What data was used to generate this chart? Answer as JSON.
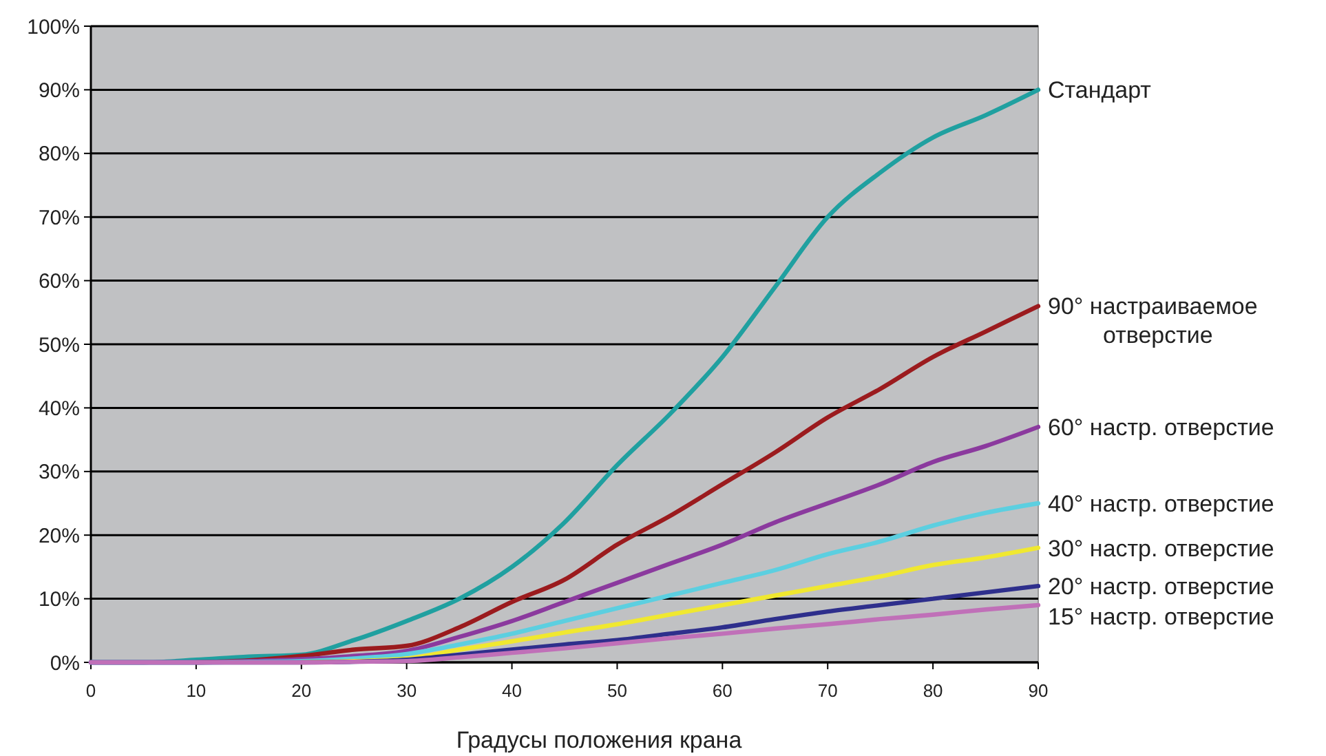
{
  "chart_data": {
    "type": "line",
    "xlabel": "Градусы положения крана",
    "x": [
      0,
      5,
      10,
      15,
      20,
      25,
      30,
      35,
      40,
      45,
      50,
      55,
      60,
      65,
      70,
      75,
      80,
      85,
      90
    ],
    "xlim": [
      0,
      90
    ],
    "xticks": [
      0,
      10,
      20,
      30,
      40,
      50,
      60,
      70,
      80,
      90
    ],
    "ylim": [
      0,
      100
    ],
    "yticks": [
      {
        "value": 0,
        "label": "0%"
      },
      {
        "value": 10,
        "label": "10%"
      },
      {
        "value": 20,
        "label": "20%"
      },
      {
        "value": 30,
        "label": "30%"
      },
      {
        "value": 40,
        "label": "40%"
      },
      {
        "value": 50,
        "label": "50%"
      },
      {
        "value": 60,
        "label": "60%"
      },
      {
        "value": 70,
        "label": "70%"
      },
      {
        "value": 80,
        "label": "80%"
      },
      {
        "value": 90,
        "label": "90%"
      },
      {
        "value": 100,
        "label": "100%"
      }
    ],
    "grid": "y",
    "legend": false,
    "line_style": "solid",
    "marker": "none",
    "series": [
      {
        "name": "Стандарт",
        "color": "#20a0a0",
        "values": [
          0,
          0,
          0.4,
          0.9,
          1.2,
          3.5,
          6.5,
          10,
          15,
          22,
          31,
          39,
          48,
          59,
          70,
          77,
          82.5,
          86,
          90
        ]
      },
      {
        "name": "90° настраиваемое отверстие",
        "color": "#9b1b1e",
        "values": [
          null,
          null,
          0,
          0.3,
          1,
          2,
          2.6,
          5.5,
          9.5,
          13,
          18.5,
          23,
          28,
          33,
          38.5,
          43,
          48,
          52,
          56
        ]
      },
      {
        "name": "60° настр. отверстие",
        "color": "#8b3a9e",
        "values": [
          0,
          0,
          0,
          0.2,
          0.5,
          1,
          1.8,
          4,
          6.5,
          9.5,
          12.5,
          15.5,
          18.5,
          22,
          25,
          28,
          31.5,
          34,
          37
        ]
      },
      {
        "name": "40° настр. отверстие",
        "color": "#5ccfe0",
        "values": [
          0,
          0,
          0,
          0.1,
          0.2,
          0.6,
          1.3,
          2.8,
          4.5,
          6.5,
          8.5,
          10.5,
          12.5,
          14.5,
          17,
          19,
          21.5,
          23.5,
          25
        ]
      },
      {
        "name": "30° настр. отверстие",
        "color": "#f0e830",
        "values": [
          null,
          null,
          null,
          null,
          0,
          0.2,
          0.6,
          2,
          3.3,
          4.7,
          6,
          7.5,
          9,
          10.5,
          12,
          13.5,
          15.3,
          16.5,
          18
        ]
      },
      {
        "name": "20° настр. отверстие",
        "color": "#2e2f8c",
        "values": [
          0,
          0,
          0,
          0,
          0,
          0.1,
          0.4,
          1.2,
          2,
          2.8,
          3.5,
          4.5,
          5.5,
          6.8,
          8,
          9,
          10,
          11,
          12
        ]
      },
      {
        "name": "15° настр. отверстие",
        "color": "#c070b8",
        "values": [
          0,
          0,
          0,
          0,
          0,
          0.1,
          0.2,
          0.8,
          1.5,
          2.2,
          3,
          3.8,
          4.5,
          5.3,
          6,
          6.8,
          7.5,
          8.3,
          9
        ]
      }
    ]
  }
}
